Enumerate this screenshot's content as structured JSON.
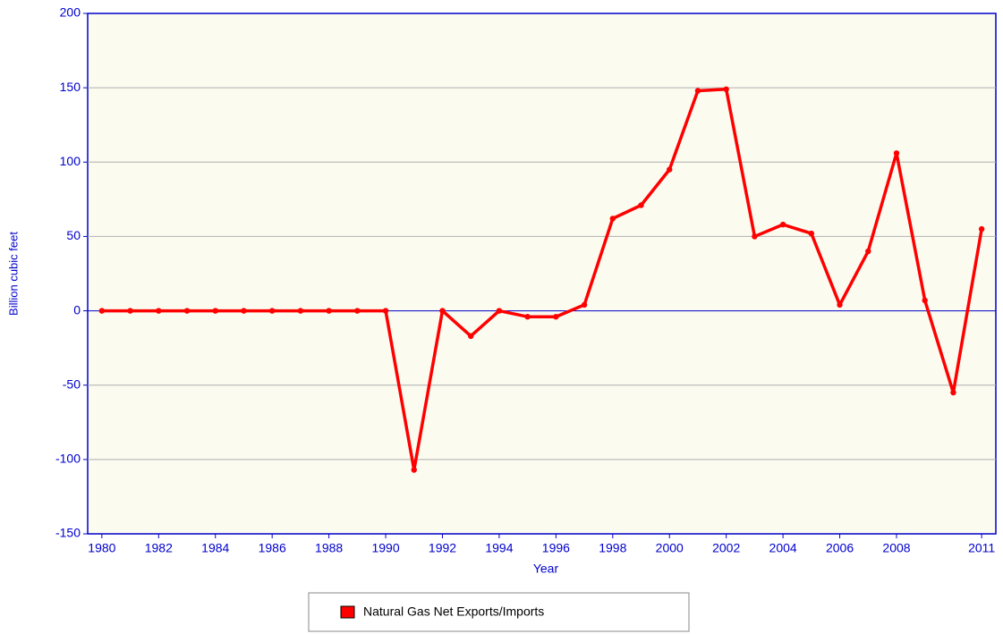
{
  "chart_data": {
    "type": "line",
    "x_label": "Year",
    "y_label": "Billion cubic feet",
    "x": [
      1980,
      1981,
      1982,
      1983,
      1984,
      1985,
      1986,
      1987,
      1988,
      1989,
      1990,
      1991,
      1992,
      1993,
      1994,
      1995,
      1996,
      1997,
      1998,
      1999,
      2000,
      2001,
      2002,
      2003,
      2004,
      2005,
      2006,
      2007,
      2008,
      2009,
      2010,
      2011
    ],
    "series": [
      {
        "name": "Natural Gas Net Exports/Imports",
        "color": "#ff0000",
        "values": [
          0,
          0,
          0,
          0,
          0,
          0,
          0,
          0,
          0,
          0,
          0,
          -107,
          0,
          -17,
          0,
          -4,
          -4,
          4,
          62,
          71,
          95,
          148,
          149,
          50,
          58,
          52,
          4,
          40,
          106,
          7,
          -55,
          55
        ]
      }
    ],
    "xlim": [
      1979.5,
      2011.5
    ],
    "xticks": [
      1980,
      1982,
      1984,
      1986,
      1988,
      1990,
      1992,
      1994,
      1996,
      1998,
      2000,
      2002,
      2004,
      2006,
      2008,
      2011
    ],
    "ylim": [
      -150,
      200
    ],
    "yticks": [
      -150,
      -100,
      -50,
      0,
      50,
      100,
      150,
      200
    ],
    "grid": true
  }
}
